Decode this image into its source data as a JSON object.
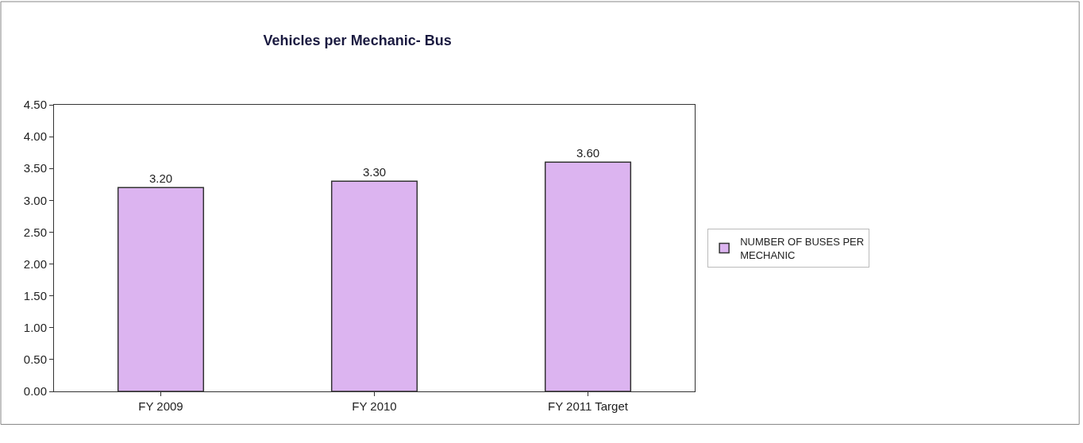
{
  "chart_data": {
    "type": "bar",
    "title": "Vehicles per Mechanic- Bus",
    "categories": [
      "FY 2009",
      "FY 2010",
      "FY 2011 Target"
    ],
    "series": [
      {
        "name": "NUMBER OF BUSES PER MECHANIC",
        "color": "#dcb4f0",
        "values": [
          3.2,
          3.3,
          3.6
        ],
        "value_labels": [
          "3.20",
          "3.30",
          "3.60"
        ]
      }
    ],
    "ylim": [
      0,
      4.5
    ],
    "yticks": [
      {
        "value": 0,
        "label": "0.00"
      },
      {
        "value": 0.5,
        "label": "0.50"
      },
      {
        "value": 1,
        "label": "1.00"
      },
      {
        "value": 1.5,
        "label": "1.50"
      },
      {
        "value": 2,
        "label": "2.00"
      },
      {
        "value": 2.5,
        "label": "2.50"
      },
      {
        "value": 3,
        "label": "3.00"
      },
      {
        "value": 3.5,
        "label": "3.50"
      },
      {
        "value": 4,
        "label": "4.00"
      },
      {
        "value": 4.5,
        "label": "4.50"
      }
    ],
    "legend": "right"
  }
}
